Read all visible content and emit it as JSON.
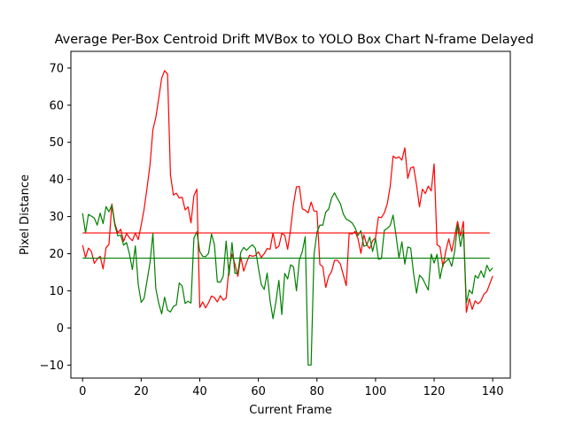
{
  "chart_data": {
    "type": "line",
    "title": "Average Per-Box Centroid Drift MVBox to YOLO Box Chart N-frame Delayed",
    "xlabel": "Current Frame",
    "ylabel": "Pixel Distance",
    "xlim": [
      -4,
      146
    ],
    "ylim": [
      -13.5,
      74.5
    ],
    "xticks": [
      0,
      20,
      40,
      60,
      80,
      100,
      120,
      140
    ],
    "yticks": [
      -10,
      0,
      10,
      20,
      30,
      40,
      50,
      60,
      70
    ],
    "grid": false,
    "legend": "none",
    "series": [
      {
        "color": "#ff0000",
        "values": [
          22.3,
          19,
          21.5,
          20.6,
          17.4,
          18.6,
          19.3,
          15.9,
          21.6,
          22.5,
          33.4,
          28.2,
          25.6,
          26.6,
          23.3,
          25.4,
          24.3,
          23.5,
          25.6,
          23.8,
          27.7,
          32,
          37.7,
          43.8,
          53.4,
          56.7,
          61.9,
          67.3,
          69.3,
          68.4,
          41.2,
          35.8,
          36.3,
          35,
          35.2,
          31.8,
          32.6,
          28.3,
          35.6,
          37.4,
          5.5,
          7,
          5.4,
          6.8,
          8.6,
          8.2,
          7,
          8.7,
          7.5,
          8,
          16.2,
          19.9,
          17.2,
          13.9,
          19.1,
          15.3,
          17.7,
          19.6,
          19.3,
          19.5,
          20.5,
          19,
          20,
          21.4,
          21.2,
          25.6,
          21.4,
          22,
          25.4,
          25,
          21.2,
          26.6,
          33.4,
          38,
          38.1,
          32.1,
          31.7,
          31,
          33.9,
          31.5,
          31.4,
          17.1,
          16.5,
          10.9,
          13.9,
          15.2,
          18.2,
          18.2,
          17.2,
          14.3,
          11.4,
          25.5,
          25.3,
          26,
          24.1,
          20.1,
          25.1,
          22.4,
          21.4,
          23.5,
          24.3,
          29.9,
          29.7,
          31,
          33.4,
          38.1,
          46.3,
          45.7,
          46.1,
          45.2,
          48.5,
          40.3,
          43.1,
          43.4,
          38.5,
          32.6,
          37.4,
          36.2,
          38.2,
          36.9,
          44.2,
          22.4,
          21.9,
          16.5,
          20.8,
          24,
          20.6,
          24.5,
          28.7,
          24.8,
          28.7,
          4.2,
          7.9,
          5,
          7.3,
          6.5,
          7.3,
          9.1,
          9.8,
          11.9,
          14
        ]
      },
      {
        "color": "#008000",
        "values": [
          30.9,
          25.6,
          30.6,
          30.1,
          29.6,
          27.7,
          30.9,
          28.1,
          32.7,
          31.3,
          33.1,
          27.7,
          24.8,
          25,
          22.3,
          23,
          19.9,
          15.7,
          22.1,
          11.7,
          6.9,
          8,
          12.7,
          17.5,
          25.5,
          10.6,
          6.6,
          3.8,
          8.3,
          4.8,
          4.3,
          5.8,
          6.2,
          12.1,
          11.3,
          6.6,
          7.2,
          6.7,
          24.2,
          25.9,
          20.6,
          19.3,
          19.2,
          20.1,
          25.3,
          22.5,
          12.4,
          12.3,
          13.9,
          23.4,
          14.2,
          23,
          14.7,
          14.8,
          20.4,
          21.7,
          20.9,
          21.8,
          22.4,
          21.4,
          16.2,
          11.7,
          10.4,
          14.8,
          7.3,
          2.5,
          7.1,
          12.8,
          3.6,
          14.7,
          13.2,
          17,
          16.5,
          10,
          18.3,
          20.6,
          24.6,
          -10,
          -10,
          19.7,
          25.8,
          27.7,
          27.7,
          31.2,
          32,
          35,
          36.4,
          34.8,
          33.5,
          30.7,
          29.3,
          28.9,
          28.3,
          27,
          24.9,
          26.2,
          22,
          22.3,
          24.5,
          20.6,
          24.1,
          18.5,
          18.7,
          26.3,
          26.8,
          27.6,
          30.4,
          24.9,
          18.8,
          23.2,
          17.2,
          21.8,
          21.5,
          14.6,
          9.4,
          14.2,
          13.4,
          11.8,
          10.2,
          19.9,
          17.5,
          19.8,
          13.3,
          17.1,
          17.9,
          18.6,
          16.6,
          20.6,
          27.7,
          21.9,
          26.3,
          6.8,
          10.2,
          9.2,
          14.1,
          13.4,
          15.4,
          13.6,
          16.9,
          15.3,
          16.2
        ]
      },
      {
        "color": "#ff0000",
        "x": [
          0,
          139
        ],
        "values": [
          25.6,
          25.6
        ]
      },
      {
        "color": "#008000",
        "x": [
          0,
          139
        ],
        "values": [
          18.8,
          18.8
        ]
      }
    ]
  }
}
